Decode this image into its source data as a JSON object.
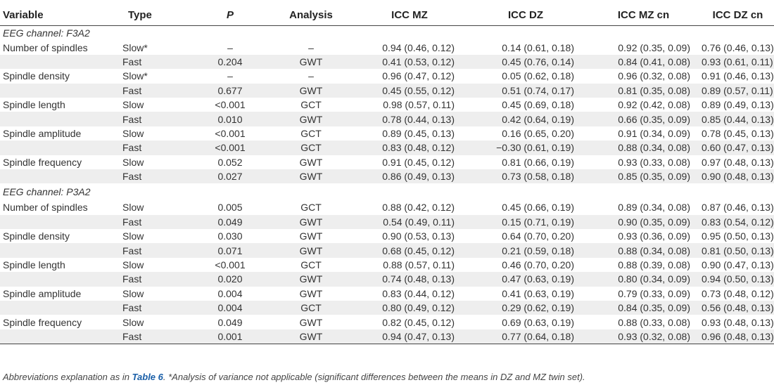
{
  "table": {
    "headers": [
      "Variable",
      "Type",
      "P",
      "Analysis",
      "ICC MZ",
      "ICC DZ",
      "ICC MZ cn",
      "ICC DZ cn"
    ],
    "sections": [
      {
        "title": "EEG channel: F3A2",
        "rows": [
          {
            "variable": "Number of spindles",
            "type": "Slow*",
            "p": "–",
            "analysis": "–",
            "icc_mz": "0.94 (0.46, 0.12)",
            "icc_dz": "0.14 (0.61, 0.18)",
            "icc_mz_cn": "0.92 (0.35, 0.09)",
            "icc_dz_cn": "0.76 (0.46, 0.13)"
          },
          {
            "variable": "",
            "type": "Fast",
            "p": "0.204",
            "analysis": "GWT",
            "icc_mz": "0.41 (0.53, 0.12)",
            "icc_dz": "0.45 (0.76, 0.14)",
            "icc_mz_cn": "0.84 (0.41, 0.08)",
            "icc_dz_cn": "0.93 (0.61, 0.11)"
          },
          {
            "variable": "Spindle density",
            "type": "Slow*",
            "p": "–",
            "analysis": "–",
            "icc_mz": "0.96 (0.47, 0.12)",
            "icc_dz": "0.05 (0.62, 0.18)",
            "icc_mz_cn": "0.96 (0.32, 0.08)",
            "icc_dz_cn": "0.91 (0.46, 0.13)"
          },
          {
            "variable": "",
            "type": "Fast",
            "p": "0.677",
            "analysis": "GWT",
            "icc_mz": "0.45 (0.55, 0.12)",
            "icc_dz": "0.51 (0.74, 0.17)",
            "icc_mz_cn": "0.81 (0.35, 0.08)",
            "icc_dz_cn": "0.89 (0.57, 0.11)"
          },
          {
            "variable": "Spindle length",
            "type": "Slow",
            "p": "<0.001",
            "analysis": "GCT",
            "icc_mz": "0.98 (0.57, 0.11)",
            "icc_dz": "0.45 (0.69, 0.18)",
            "icc_mz_cn": "0.92 (0.42, 0.08)",
            "icc_dz_cn": "0.89 (0.49, 0.13)"
          },
          {
            "variable": "",
            "type": "Fast",
            "p": "0.010",
            "analysis": "GWT",
            "icc_mz": "0.78 (0.44, 0.13)",
            "icc_dz": "0.42 (0.64, 0.19)",
            "icc_mz_cn": "0.66 (0.35, 0.09)",
            "icc_dz_cn": "0.85 (0.44, 0.13)"
          },
          {
            "variable": "Spindle amplitude",
            "type": "Slow",
            "p": "<0.001",
            "analysis": "GCT",
            "icc_mz": "0.89 (0.45, 0.13)",
            "icc_dz": "0.16 (0.65, 0.20)",
            "icc_mz_cn": "0.91 (0.34, 0.09)",
            "icc_dz_cn": "0.78 (0.45, 0.13)"
          },
          {
            "variable": "",
            "type": "Fast",
            "p": "<0.001",
            "analysis": "GCT",
            "icc_mz": "0.83 (0.48, 0.12)",
            "icc_dz": "−0.30 (0.61, 0.19)",
            "icc_mz_cn": "0.88 (0.34, 0.08)",
            "icc_dz_cn": "0.60 (0.47, 0.13)"
          },
          {
            "variable": "Spindle frequency",
            "type": "Slow",
            "p": "0.052",
            "analysis": "GWT",
            "icc_mz": "0.91 (0.45, 0.12)",
            "icc_dz": "0.81 (0.66, 0.19)",
            "icc_mz_cn": "0.93 (0.33, 0.08)",
            "icc_dz_cn": "0.97 (0.48, 0.13)"
          },
          {
            "variable": "",
            "type": "Fast",
            "p": "0.027",
            "analysis": "GWT",
            "icc_mz": "0.86 (0.49, 0.13)",
            "icc_dz": "0.73 (0.58, 0.18)",
            "icc_mz_cn": "0.85 (0.35, 0.09)",
            "icc_dz_cn": "0.90 (0.48, 0.13)"
          }
        ]
      },
      {
        "title": "EEG channel: P3A2",
        "rows": [
          {
            "variable": "Number of spindles",
            "type": "Slow",
            "p": "0.005",
            "analysis": "GCT",
            "icc_mz": "0.88 (0.42, 0.12)",
            "icc_dz": "0.45 (0.66, 0.19)",
            "icc_mz_cn": "0.89 (0.34, 0.08)",
            "icc_dz_cn": "0.87 (0.46, 0.13)"
          },
          {
            "variable": "",
            "type": "Fast",
            "p": "0.049",
            "analysis": "GWT",
            "icc_mz": "0.54 (0.49, 0.11)",
            "icc_dz": "0.15 (0.71, 0.19)",
            "icc_mz_cn": "0.90 (0.35, 0.09)",
            "icc_dz_cn": "0.83 (0.54, 0.12)"
          },
          {
            "variable": "Spindle density",
            "type": "Slow",
            "p": "0.030",
            "analysis": "GWT",
            "icc_mz": "0.90 (0.53, 0.13)",
            "icc_dz": "0.64 (0.70, 0.20)",
            "icc_mz_cn": "0.93 (0.36, 0.09)",
            "icc_dz_cn": "0.95 (0.50, 0.13)"
          },
          {
            "variable": "",
            "type": "Fast",
            "p": "0.071",
            "analysis": "GWT",
            "icc_mz": "0.68 (0.45, 0.12)",
            "icc_dz": "0.21 (0.59, 0.18)",
            "icc_mz_cn": "0.88 (0.34, 0.08)",
            "icc_dz_cn": "0.81 (0.50, 0.13)"
          },
          {
            "variable": "Spindle length",
            "type": "Slow",
            "p": "<0.001",
            "analysis": "GCT",
            "icc_mz": "0.88 (0.57, 0.11)",
            "icc_dz": "0.46 (0.70, 0.20)",
            "icc_mz_cn": "0.88 (0.39, 0.08)",
            "icc_dz_cn": "0.90 (0.47, 0.13)"
          },
          {
            "variable": "",
            "type": "Fast",
            "p": "0.020",
            "analysis": "GWT",
            "icc_mz": "0.74 (0.48, 0.13)",
            "icc_dz": "0.47 (0.63, 0.19)",
            "icc_mz_cn": "0.80 (0.34, 0.09)",
            "icc_dz_cn": "0.94 (0.50, 0.13)"
          },
          {
            "variable": "Spindle amplitude",
            "type": "Slow",
            "p": "0.004",
            "analysis": "GWT",
            "icc_mz": "0.83 (0.44, 0.12)",
            "icc_dz": "0.41 (0.63, 0.19)",
            "icc_mz_cn": "0.79 (0.33, 0.09)",
            "icc_dz_cn": "0.73 (0.48, 0.12)"
          },
          {
            "variable": "",
            "type": "Fast",
            "p": "0.004",
            "analysis": "GCT",
            "icc_mz": "0.80 (0.49, 0.12)",
            "icc_dz": "0.29 (0.62, 0.19)",
            "icc_mz_cn": "0.84 (0.35, 0.09)",
            "icc_dz_cn": "0.56 (0.48, 0.13)"
          },
          {
            "variable": "Spindle frequency",
            "type": "Slow",
            "p": "0.049",
            "analysis": "GWT",
            "icc_mz": "0.82 (0.45, 0.12)",
            "icc_dz": "0.69 (0.63, 0.19)",
            "icc_mz_cn": "0.88 (0.33, 0.08)",
            "icc_dz_cn": "0.93 (0.48, 0.13)"
          },
          {
            "variable": "",
            "type": "Fast",
            "p": "0.001",
            "analysis": "GWT",
            "icc_mz": "0.94 (0.47, 0.13)",
            "icc_dz": "0.77 (0.64, 0.18)",
            "icc_mz_cn": "0.93 (0.32, 0.08)",
            "icc_dz_cn": "0.96 (0.48, 0.13)"
          }
        ]
      }
    ]
  },
  "footnote": {
    "prefix": "Abbreviations explanation as in ",
    "link": "Table 6",
    "suffix": ". *Analysis of variance not applicable (significant differences between the means in DZ and MZ twin set)."
  },
  "colors": {
    "shade": "#eeeeee",
    "link": "#1a5fa8",
    "rule": "#444444"
  }
}
